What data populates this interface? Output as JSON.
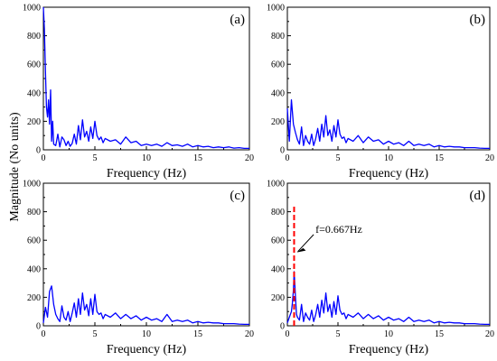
{
  "figure": {
    "ylabel": "Magnitude (No units)",
    "colors": {
      "series": "#0000ff",
      "marker": "#ff0000",
      "axis": "#000000"
    }
  },
  "chart_data": [
    {
      "type": "line",
      "panel": "(a)",
      "xlabel": "Frequency (Hz)",
      "xlim": [
        0,
        20
      ],
      "ylim": [
        0,
        1000
      ],
      "xticks": [
        0,
        5,
        10,
        15,
        20
      ],
      "yticks": [
        0,
        200,
        400,
        600,
        800,
        1000
      ],
      "series": [
        {
          "x": [
            0,
            0.1,
            0.2,
            0.3,
            0.4,
            0.5,
            0.6,
            0.7,
            0.8,
            0.9,
            1.0,
            1.2,
            1.4,
            1.6,
            1.8,
            2.0,
            2.2,
            2.4,
            2.6,
            2.8,
            3.0,
            3.2,
            3.4,
            3.6,
            3.8,
            4.0,
            4.2,
            4.4,
            4.6,
            4.8,
            5.0,
            5.2,
            5.4,
            5.6,
            5.8,
            6.0,
            6.5,
            7.0,
            7.5,
            8.0,
            8.5,
            9.0,
            9.5,
            10.0,
            10.5,
            11.0,
            11.5,
            12.0,
            12.5,
            13.0,
            13.5,
            14.0,
            14.5,
            15.0,
            15.5,
            16.0,
            16.5,
            17.0,
            17.5,
            18.0,
            18.5,
            19.0,
            19.5,
            20.0
          ],
          "y": [
            1000,
            850,
            550,
            300,
            230,
            350,
            180,
            420,
            60,
            200,
            40,
            30,
            110,
            20,
            90,
            70,
            30,
            60,
            25,
            45,
            110,
            40,
            170,
            70,
            210,
            90,
            130,
            60,
            160,
            80,
            200,
            100,
            70,
            90,
            50,
            80,
            60,
            70,
            40,
            90,
            50,
            60,
            30,
            40,
            30,
            40,
            25,
            50,
            30,
            35,
            25,
            40,
            20,
            30,
            20,
            25,
            15,
            20,
            15,
            20,
            12,
            15,
            10,
            10
          ]
        }
      ]
    },
    {
      "type": "line",
      "panel": "(b)",
      "xlabel": "Frequency (Hz)",
      "xlim": [
        0,
        20
      ],
      "ylim": [
        0,
        1000
      ],
      "xticks": [
        0,
        5,
        10,
        15,
        20
      ],
      "yticks": [
        0,
        200,
        400,
        600,
        800,
        1000
      ],
      "series": [
        {
          "x": [
            0,
            0.2,
            0.4,
            0.6,
            0.8,
            1.0,
            1.2,
            1.4,
            1.6,
            1.8,
            2.0,
            2.2,
            2.4,
            2.6,
            2.8,
            3.0,
            3.2,
            3.4,
            3.6,
            3.8,
            4.0,
            4.2,
            4.4,
            4.6,
            4.8,
            5.0,
            5.2,
            5.4,
            5.6,
            5.8,
            6.0,
            6.5,
            7.0,
            7.5,
            8.0,
            8.5,
            9.0,
            9.5,
            10.0,
            10.5,
            11.0,
            11.5,
            12.0,
            12.5,
            13.0,
            13.5,
            14.0,
            14.5,
            15.0,
            15.5,
            16.0,
            16.5,
            17.0,
            17.5,
            18.0,
            18.5,
            19.0,
            19.5,
            20.0
          ],
          "y": [
            290,
            60,
            350,
            180,
            120,
            70,
            40,
            160,
            30,
            100,
            60,
            40,
            110,
            30,
            80,
            150,
            60,
            180,
            90,
            240,
            100,
            140,
            60,
            170,
            90,
            210,
            110,
            80,
            90,
            50,
            80,
            60,
            100,
            50,
            90,
            60,
            70,
            40,
            60,
            40,
            50,
            30,
            60,
            30,
            40,
            30,
            40,
            20,
            30,
            20,
            25,
            20,
            20,
            15,
            15,
            15,
            12,
            10,
            10
          ]
        }
      ]
    },
    {
      "type": "line",
      "panel": "(c)",
      "xlabel": "Frequency (Hz)",
      "xlim": [
        0,
        20
      ],
      "ylim": [
        0,
        1000
      ],
      "xticks": [
        0,
        5,
        10,
        15,
        20
      ],
      "yticks": [
        0,
        200,
        400,
        600,
        800,
        1000
      ],
      "series": [
        {
          "x": [
            0,
            0.2,
            0.4,
            0.6,
            0.8,
            1.0,
            1.2,
            1.4,
            1.6,
            1.8,
            2.0,
            2.2,
            2.4,
            2.6,
            2.8,
            3.0,
            3.2,
            3.4,
            3.6,
            3.8,
            4.0,
            4.2,
            4.4,
            4.6,
            4.8,
            5.0,
            5.2,
            5.4,
            5.6,
            5.8,
            6.0,
            6.5,
            7.0,
            7.5,
            8.0,
            8.5,
            9.0,
            9.5,
            10.0,
            10.5,
            11.0,
            11.5,
            12.0,
            12.5,
            13.0,
            13.5,
            14.0,
            14.5,
            15.0,
            15.5,
            16.0,
            16.5,
            17.0,
            17.5,
            18.0,
            18.5,
            19.0,
            19.5,
            20.0
          ],
          "y": [
            20,
            130,
            60,
            240,
            280,
            150,
            80,
            50,
            30,
            140,
            60,
            40,
            100,
            30,
            90,
            160,
            60,
            190,
            80,
            230,
            110,
            150,
            70,
            190,
            80,
            220,
            100,
            80,
            90,
            50,
            80,
            60,
            90,
            50,
            80,
            50,
            70,
            40,
            60,
            40,
            50,
            30,
            80,
            30,
            40,
            30,
            40,
            20,
            30,
            20,
            25,
            20,
            20,
            15,
            15,
            15,
            12,
            10,
            10
          ]
        }
      ]
    },
    {
      "type": "line",
      "panel": "(d)",
      "xlabel": "Frequency (Hz)",
      "xlim": [
        0,
        20
      ],
      "ylim": [
        0,
        1000
      ],
      "xticks": [
        0,
        5,
        10,
        15,
        20
      ],
      "yticks": [
        0,
        200,
        400,
        600,
        800,
        1000
      ],
      "marker": {
        "x": 0.667,
        "ymax": 840,
        "label": "f=0.667Hz"
      },
      "series": [
        {
          "x": [
            0,
            0.2,
            0.4,
            0.5,
            0.6,
            0.667,
            0.7,
            0.8,
            0.9,
            1.0,
            1.2,
            1.4,
            1.6,
            1.8,
            2.0,
            2.2,
            2.4,
            2.6,
            2.8,
            3.0,
            3.2,
            3.4,
            3.6,
            3.8,
            4.0,
            4.2,
            4.4,
            4.6,
            4.8,
            5.0,
            5.2,
            5.4,
            5.6,
            5.8,
            6.0,
            6.5,
            7.0,
            7.5,
            8.0,
            8.5,
            9.0,
            9.5,
            10.0,
            10.5,
            11.0,
            11.5,
            12.0,
            12.5,
            13.0,
            13.5,
            14.0,
            14.5,
            15.0,
            15.5,
            16.0,
            16.5,
            17.0,
            17.5,
            18.0,
            18.5,
            19.0,
            19.5,
            20.0
          ],
          "y": [
            20,
            60,
            100,
            160,
            250,
            380,
            350,
            200,
            80,
            60,
            40,
            150,
            30,
            90,
            60,
            40,
            110,
            30,
            80,
            150,
            60,
            180,
            90,
            230,
            100,
            150,
            60,
            170,
            80,
            210,
            110,
            80,
            90,
            50,
            80,
            60,
            90,
            50,
            80,
            50,
            70,
            40,
            60,
            40,
            50,
            30,
            60,
            30,
            40,
            30,
            40,
            20,
            30,
            20,
            25,
            20,
            20,
            15,
            15,
            15,
            12,
            10,
            10
          ]
        }
      ]
    }
  ]
}
